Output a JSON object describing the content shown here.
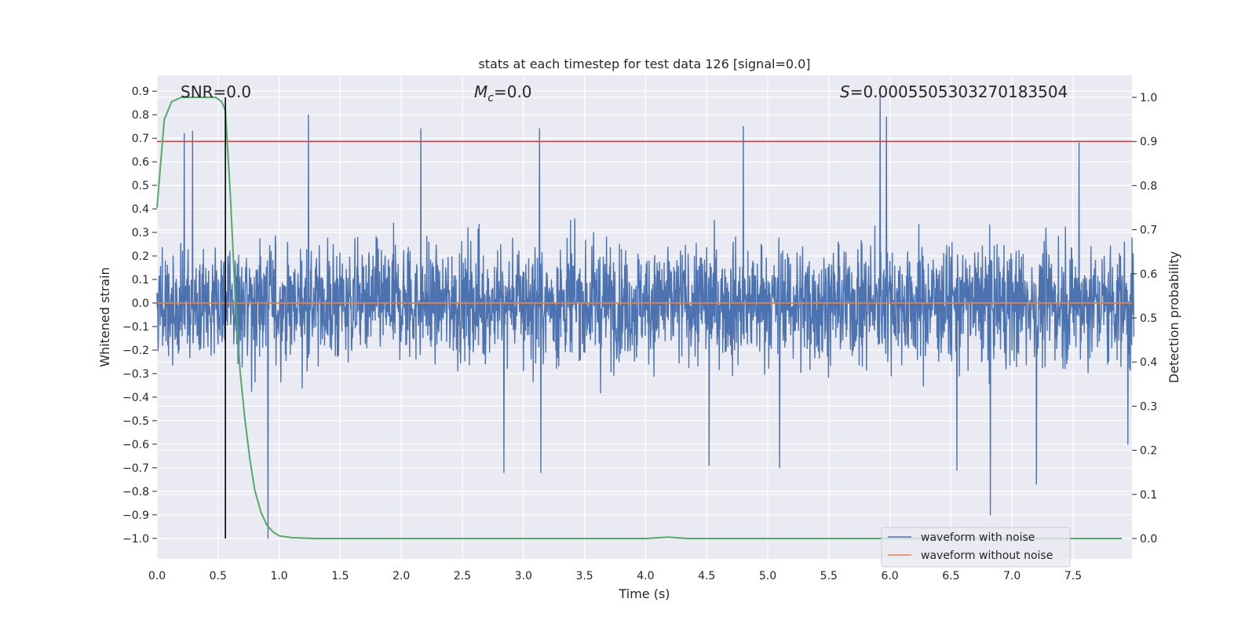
{
  "chart_data": {
    "type": "line",
    "title": "stats at each timestep for test data 126 [signal=0.0]",
    "xlabel": "Time (s)",
    "ylabel": "Whitened strain",
    "y2label": "Detection probability",
    "xlim": [
      0.0,
      8.0
    ],
    "ylim": [
      -1.09,
      0.97
    ],
    "y2lim": [
      -0.047,
      1.047
    ],
    "x_ticks": [
      "0.0",
      "0.5",
      "1.0",
      "1.5",
      "2.0",
      "2.5",
      "3.0",
      "3.5",
      "4.0",
      "4.5",
      "5.0",
      "5.5",
      "6.0",
      "6.5",
      "7.0",
      "7.5"
    ],
    "y_ticks": [
      "0.9",
      "0.8",
      "0.7",
      "0.6",
      "0.5",
      "0.4",
      "0.3",
      "0.2",
      "0.1",
      "0.0",
      "−0.1",
      "−0.2",
      "−0.3",
      "−0.4",
      "−0.5",
      "−0.6",
      "−0.7",
      "−0.8",
      "−0.9",
      "−1.0"
    ],
    "y2_ticks": [
      "1.0",
      "0.9",
      "0.8",
      "0.7",
      "0.6",
      "0.5",
      "0.4",
      "0.3",
      "0.2",
      "0.1",
      "0.0"
    ],
    "annotations": {
      "snr": "SNR=0.0",
      "mc_symbol": "M",
      "mc_sub": "c",
      "mc_value": "=0.0",
      "s_symbol": "S",
      "s_value": "=0.0005505303270183504"
    },
    "threshold": {
      "axis": "right",
      "value": 0.9,
      "color": "#c44e52"
    },
    "marker_line_x": 0.56,
    "legend": {
      "placement": "bottom-right",
      "entries": [
        "waveform with noise",
        "waveform without noise"
      ]
    },
    "series": [
      {
        "name": "waveform with noise",
        "axis": "left",
        "color": "#4c72b0",
        "description": "whitened noise, 8 s",
        "noise_envelope": {
          "upper_typical": 0.4,
          "lower_typical": -0.4
        },
        "peaks": [
          {
            "x": 0.22,
            "y": 0.72
          },
          {
            "x": 0.29,
            "y": 0.73
          },
          {
            "x": 1.24,
            "y": 0.8
          },
          {
            "x": 2.16,
            "y": 0.74
          },
          {
            "x": 3.13,
            "y": 0.74
          },
          {
            "x": 4.8,
            "y": 0.75
          },
          {
            "x": 5.92,
            "y": 0.88
          },
          {
            "x": 5.97,
            "y": 0.79
          },
          {
            "x": 7.55,
            "y": 0.68
          },
          {
            "x": 0.91,
            "y": -1.0
          },
          {
            "x": 2.84,
            "y": -0.72
          },
          {
            "x": 3.14,
            "y": -0.72
          },
          {
            "x": 4.52,
            "y": -0.69
          },
          {
            "x": 5.1,
            "y": -0.7
          },
          {
            "x": 6.55,
            "y": -0.71
          },
          {
            "x": 6.82,
            "y": -0.9
          },
          {
            "x": 7.2,
            "y": -0.77
          },
          {
            "x": 7.95,
            "y": -0.6
          }
        ]
      },
      {
        "name": "waveform without noise",
        "axis": "left",
        "color": "#dd8452",
        "x": [
          0.0,
          8.0
        ],
        "y": [
          0.0,
          0.0
        ]
      },
      {
        "name": "detection probability",
        "axis": "right",
        "color": "#55a868",
        "x": [
          0.0,
          0.06,
          0.12,
          0.2,
          0.3,
          0.4,
          0.48,
          0.53,
          0.56,
          0.6,
          0.64,
          0.68,
          0.72,
          0.76,
          0.8,
          0.85,
          0.9,
          0.95,
          1.0,
          1.1,
          1.3,
          1.6,
          2.0,
          3.0,
          4.0,
          4.18,
          4.35,
          5.0,
          6.0,
          7.0,
          7.9
        ],
        "y": [
          0.75,
          0.95,
          0.99,
          1.0,
          1.0,
          1.0,
          1.0,
          0.99,
          0.97,
          0.78,
          0.55,
          0.38,
          0.27,
          0.18,
          0.11,
          0.06,
          0.03,
          0.015,
          0.006,
          0.002,
          0.0,
          0.0,
          0.0,
          0.0,
          0.0,
          0.003,
          0.0,
          0.0,
          0.0,
          0.0,
          0.0
        ]
      }
    ]
  }
}
